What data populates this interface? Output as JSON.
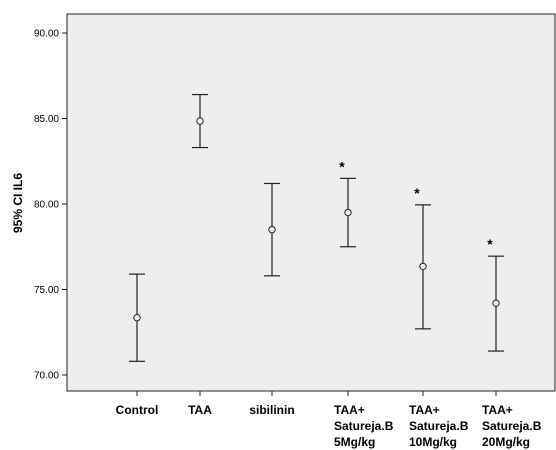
{
  "chart_data": {
    "type": "errorbar",
    "ylabel": "95% CI IL6",
    "ylim": [
      70,
      90
    ],
    "yticks": [
      "70.00",
      "75.00",
      "80.00",
      "85.00",
      "90.00"
    ],
    "grid": false,
    "background": "#eeeeee",
    "categories": [
      {
        "lines": [
          "Control"
        ]
      },
      {
        "lines": [
          "TAA"
        ]
      },
      {
        "lines": [
          "sibilinin"
        ]
      },
      {
        "lines": [
          "TAA+",
          "Satureja.B",
          "5Mg/kg"
        ]
      },
      {
        "lines": [
          "TAA+",
          "Satureja.B",
          "10Mg/kg"
        ]
      },
      {
        "lines": [
          "TAA+",
          "Satureja.B",
          "20Mg/kg"
        ]
      }
    ],
    "points": [
      {
        "mean": 73.35,
        "lower": 70.8,
        "upper": 75.9,
        "marker": ""
      },
      {
        "mean": 84.85,
        "lower": 83.3,
        "upper": 86.4,
        "marker": ""
      },
      {
        "mean": 78.5,
        "lower": 75.8,
        "upper": 81.2,
        "marker": ""
      },
      {
        "mean": 79.5,
        "lower": 77.5,
        "upper": 81.5,
        "marker": "*"
      },
      {
        "mean": 76.35,
        "lower": 72.7,
        "upper": 79.95,
        "marker": "*"
      },
      {
        "mean": 74.2,
        "lower": 71.4,
        "upper": 76.95,
        "marker": "*"
      }
    ]
  }
}
